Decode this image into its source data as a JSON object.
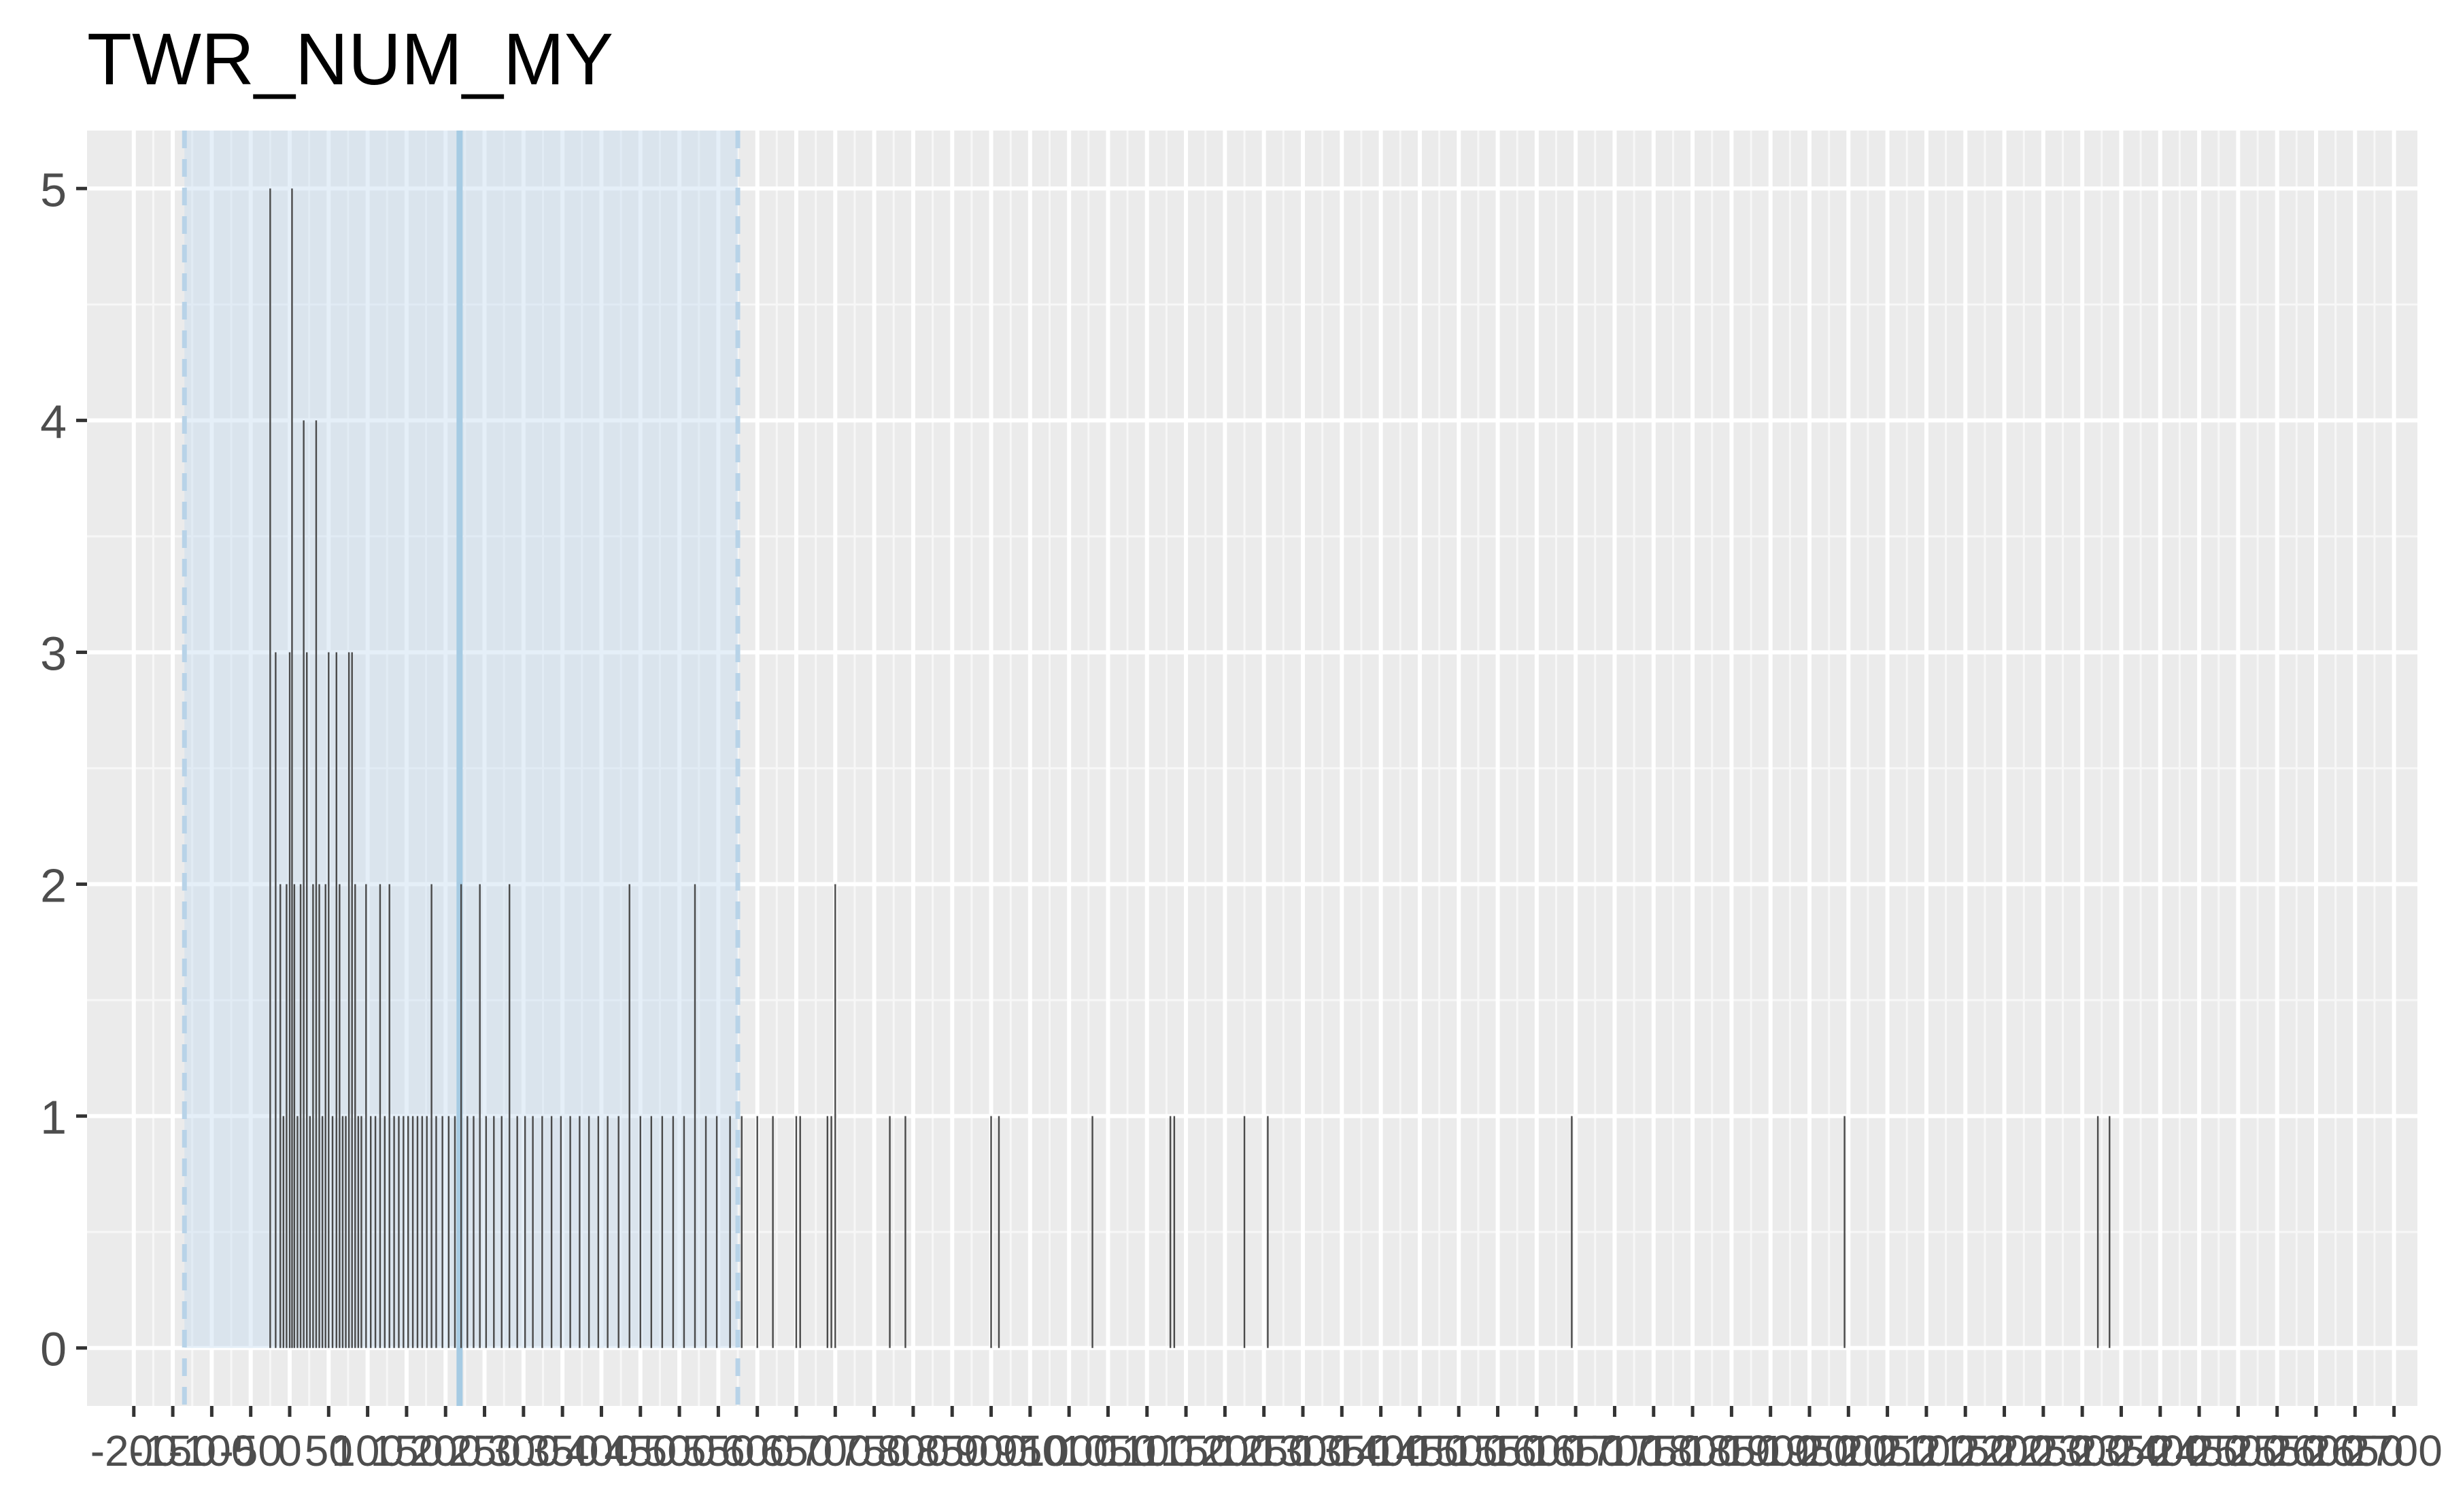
{
  "chart_data": {
    "type": "bar",
    "title": "TWR_NUM_MY",
    "xlabel": "",
    "ylabel": "",
    "xlim": [
      -260,
      2730
    ],
    "ylim": [
      -0.25,
      5.25
    ],
    "grid": true,
    "y_ticks": [
      0,
      1,
      2,
      3,
      4,
      5
    ],
    "x_ticks": [
      -200,
      -150,
      -100,
      -50,
      0,
      50,
      100,
      150,
      200,
      250,
      300,
      350,
      400,
      450,
      500,
      550,
      600,
      650,
      700,
      750,
      800,
      850,
      900,
      950,
      1000,
      1050,
      1100,
      1150,
      1200,
      1250,
      1300,
      1350,
      1400,
      1450,
      1500,
      1550,
      1600,
      1650,
      1700,
      1750,
      1800,
      1850,
      1900,
      1950,
      2000,
      2050,
      2100,
      2150,
      2200,
      2250,
      2300,
      2350,
      2400,
      2450,
      2500,
      2550,
      2600,
      2650,
      2700
    ],
    "highlight_band": {
      "from": -135,
      "to": 575,
      "color": "#c6dbef"
    },
    "center_line": 218,
    "band_edge_color": "#b8d3e8",
    "bar_color": "#4a4a4a",
    "bars": [
      {
        "x": -25,
        "y": 5
      },
      {
        "x": -18,
        "y": 3
      },
      {
        "x": -12,
        "y": 2
      },
      {
        "x": -8,
        "y": 1
      },
      {
        "x": -4,
        "y": 2
      },
      {
        "x": 0,
        "y": 3
      },
      {
        "x": 3,
        "y": 5
      },
      {
        "x": 6,
        "y": 2
      },
      {
        "x": 10,
        "y": 1
      },
      {
        "x": 14,
        "y": 2
      },
      {
        "x": 18,
        "y": 4
      },
      {
        "x": 22,
        "y": 3
      },
      {
        "x": 26,
        "y": 1
      },
      {
        "x": 30,
        "y": 2
      },
      {
        "x": 34,
        "y": 4
      },
      {
        "x": 38,
        "y": 2
      },
      {
        "x": 42,
        "y": 1
      },
      {
        "x": 46,
        "y": 2
      },
      {
        "x": 50,
        "y": 3
      },
      {
        "x": 55,
        "y": 1
      },
      {
        "x": 60,
        "y": 3
      },
      {
        "x": 64,
        "y": 2
      },
      {
        "x": 68,
        "y": 1
      },
      {
        "x": 72,
        "y": 1
      },
      {
        "x": 76,
        "y": 3
      },
      {
        "x": 80,
        "y": 3
      },
      {
        "x": 84,
        "y": 2
      },
      {
        "x": 88,
        "y": 1
      },
      {
        "x": 92,
        "y": 1
      },
      {
        "x": 98,
        "y": 2
      },
      {
        "x": 104,
        "y": 1
      },
      {
        "x": 110,
        "y": 1
      },
      {
        "x": 116,
        "y": 2
      },
      {
        "x": 122,
        "y": 1
      },
      {
        "x": 128,
        "y": 2
      },
      {
        "x": 134,
        "y": 1
      },
      {
        "x": 140,
        "y": 1
      },
      {
        "x": 146,
        "y": 1
      },
      {
        "x": 152,
        "y": 1
      },
      {
        "x": 158,
        "y": 1
      },
      {
        "x": 164,
        "y": 1
      },
      {
        "x": 170,
        "y": 1
      },
      {
        "x": 176,
        "y": 1
      },
      {
        "x": 182,
        "y": 2
      },
      {
        "x": 188,
        "y": 1
      },
      {
        "x": 196,
        "y": 1
      },
      {
        "x": 204,
        "y": 1
      },
      {
        "x": 212,
        "y": 1
      },
      {
        "x": 220,
        "y": 2
      },
      {
        "x": 228,
        "y": 1
      },
      {
        "x": 236,
        "y": 1
      },
      {
        "x": 244,
        "y": 2
      },
      {
        "x": 252,
        "y": 1
      },
      {
        "x": 262,
        "y": 1
      },
      {
        "x": 272,
        "y": 1
      },
      {
        "x": 282,
        "y": 2
      },
      {
        "x": 292,
        "y": 1
      },
      {
        "x": 302,
        "y": 1
      },
      {
        "x": 312,
        "y": 1
      },
      {
        "x": 324,
        "y": 1
      },
      {
        "x": 336,
        "y": 1
      },
      {
        "x": 348,
        "y": 1
      },
      {
        "x": 360,
        "y": 1
      },
      {
        "x": 372,
        "y": 1
      },
      {
        "x": 384,
        "y": 1
      },
      {
        "x": 396,
        "y": 1
      },
      {
        "x": 408,
        "y": 1
      },
      {
        "x": 422,
        "y": 1
      },
      {
        "x": 436,
        "y": 2
      },
      {
        "x": 450,
        "y": 1
      },
      {
        "x": 464,
        "y": 1
      },
      {
        "x": 478,
        "y": 1
      },
      {
        "x": 492,
        "y": 1
      },
      {
        "x": 506,
        "y": 1
      },
      {
        "x": 520,
        "y": 2
      },
      {
        "x": 534,
        "y": 1
      },
      {
        "x": 548,
        "y": 1
      },
      {
        "x": 565,
        "y": 1
      },
      {
        "x": 580,
        "y": 1
      },
      {
        "x": 600,
        "y": 1
      },
      {
        "x": 620,
        "y": 1
      },
      {
        "x": 650,
        "y": 1
      },
      {
        "x": 655,
        "y": 1
      },
      {
        "x": 690,
        "y": 1
      },
      {
        "x": 695,
        "y": 1
      },
      {
        "x": 700,
        "y": 2
      },
      {
        "x": 770,
        "y": 1
      },
      {
        "x": 790,
        "y": 1
      },
      {
        "x": 900,
        "y": 1
      },
      {
        "x": 910,
        "y": 1
      },
      {
        "x": 1030,
        "y": 1
      },
      {
        "x": 1130,
        "y": 1
      },
      {
        "x": 1135,
        "y": 1
      },
      {
        "x": 1225,
        "y": 1
      },
      {
        "x": 1255,
        "y": 1
      },
      {
        "x": 1645,
        "y": 1
      },
      {
        "x": 1995,
        "y": 1
      },
      {
        "x": 2320,
        "y": 1
      },
      {
        "x": 2335,
        "y": 1
      }
    ]
  }
}
